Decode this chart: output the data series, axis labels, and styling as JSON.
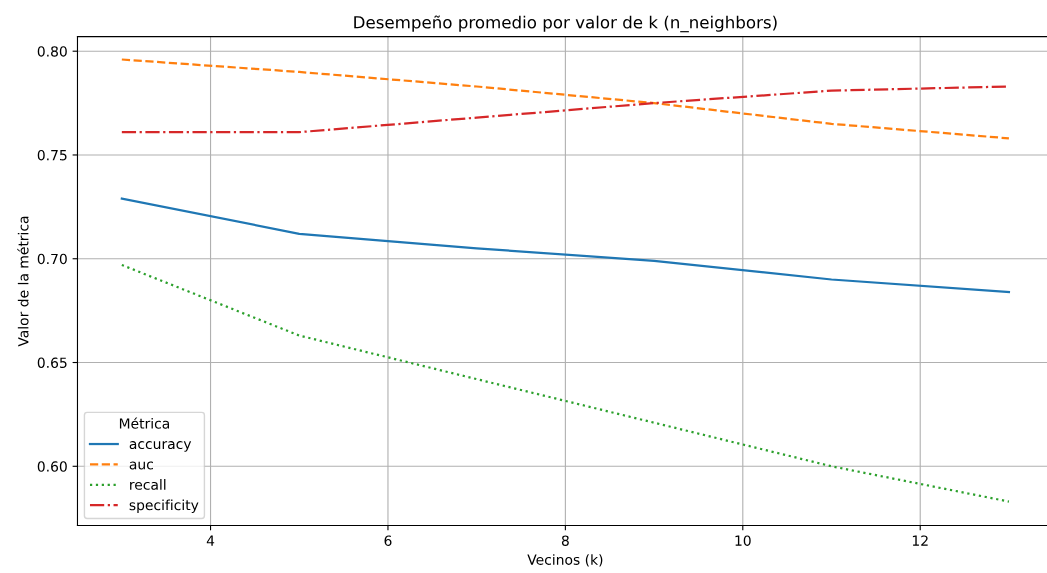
{
  "chart_data": {
    "type": "line",
    "title": "Desempeño promedio por valor de k (n_neighbors)",
    "xlabel": "Vecinos (k)",
    "ylabel": "Valor de la métrica",
    "legend_title": "Métrica",
    "legend": "bottom left",
    "grid": true,
    "x": [
      3,
      5,
      7,
      9,
      11,
      13
    ],
    "series": [
      {
        "name": "accuracy",
        "color": "#1f77b4",
        "line_style": "solid",
        "values": [
          0.729,
          0.712,
          0.705,
          0.699,
          0.69,
          0.684
        ]
      },
      {
        "name": "auc",
        "color": "#ff7f0e",
        "line_style": "dashed",
        "values": [
          0.796,
          0.79,
          0.783,
          0.775,
          0.765,
          0.758
        ]
      },
      {
        "name": "recall",
        "color": "#2ca02c",
        "line_style": "dotted",
        "values": [
          0.697,
          0.663,
          0.642,
          0.621,
          0.6,
          0.583
        ]
      },
      {
        "name": "specificity",
        "color": "#d62728",
        "line_style": "dashdot",
        "values": [
          0.761,
          0.761,
          0.768,
          0.775,
          0.781,
          0.783
        ]
      }
    ],
    "xlim": [
      2.5,
      13.5
    ],
    "xticks": [
      4,
      6,
      8,
      10,
      12
    ],
    "ylim": [
      0.5715,
      0.807
    ],
    "yticks": [
      {
        "value": 0.6,
        "label": "0.60"
      },
      {
        "value": 0.65,
        "label": "0.65"
      },
      {
        "value": 0.7,
        "label": "0.70"
      },
      {
        "value": 0.75,
        "label": "0.75"
      },
      {
        "value": 0.8,
        "label": "0.80"
      }
    ]
  }
}
